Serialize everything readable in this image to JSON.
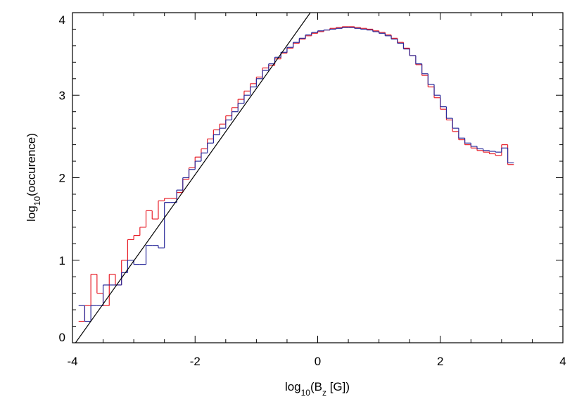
{
  "chart_data": {
    "type": "histogram",
    "xlabel": [
      {
        "text": "log"
      },
      {
        "text": "10",
        "sub": true
      },
      {
        "text": "(B"
      },
      {
        "text": "z",
        "sub": true
      },
      {
        "text": " [G])"
      }
    ],
    "ylabel": [
      {
        "text": "log"
      },
      {
        "text": "10",
        "sub": true
      },
      {
        "text": "(occurence)"
      }
    ],
    "xlim": [
      -4,
      4
    ],
    "ylim": [
      0,
      4
    ],
    "xticks": [
      -4,
      -2,
      0,
      2,
      4
    ],
    "yticks": [
      0,
      1,
      2,
      3,
      4
    ],
    "xminorticks": [
      -3.5,
      -3,
      -2.5,
      -1.5,
      -1,
      -0.5,
      0.5,
      1,
      1.5,
      2.5,
      3,
      3.5
    ],
    "yminorticks": [
      0.2,
      0.4,
      0.6,
      0.8,
      1.2,
      1.4,
      1.6,
      1.8,
      2.2,
      2.4,
      2.6,
      2.8,
      3.2,
      3.4,
      3.6,
      3.8
    ],
    "bins": [
      -3.9,
      -3.8,
      -3.7,
      -3.6,
      -3.5,
      -3.4,
      -3.3,
      -3.2,
      -3.1,
      -3.0,
      -2.9,
      -2.8,
      -2.7,
      -2.6,
      -2.5,
      -2.4,
      -2.3,
      -2.2,
      -2.1,
      -2.0,
      -1.9,
      -1.8,
      -1.7,
      -1.6,
      -1.5,
      -1.4,
      -1.3,
      -1.2,
      -1.1,
      -1.0,
      -0.9,
      -0.8,
      -0.7,
      -0.6,
      -0.5,
      -0.4,
      -0.3,
      -0.2,
      -0.1,
      0.0,
      0.1,
      0.2,
      0.3,
      0.4,
      0.5,
      0.6,
      0.7,
      0.8,
      0.9,
      1.0,
      1.1,
      1.2,
      1.3,
      1.4,
      1.5,
      1.6,
      1.7,
      1.8,
      1.9,
      2.0,
      2.1,
      2.2,
      2.3,
      2.4,
      2.5,
      2.6,
      2.7,
      2.8,
      2.9,
      3.0,
      3.1,
      3.2
    ],
    "series": [
      {
        "color": "#e8202a",
        "values": [
          0.26,
          0.45,
          0.83,
          0.6,
          0.45,
          0.83,
          0.7,
          1.0,
          1.25,
          1.3,
          1.4,
          1.6,
          1.5,
          1.72,
          1.75,
          1.75,
          1.82,
          1.98,
          2.12,
          2.25,
          2.35,
          2.47,
          2.58,
          2.65,
          2.75,
          2.85,
          2.95,
          3.05,
          3.14,
          3.22,
          3.33,
          3.36,
          3.44,
          3.51,
          3.57,
          3.63,
          3.68,
          3.72,
          3.75,
          3.77,
          3.79,
          3.81,
          3.82,
          3.83,
          3.83,
          3.82,
          3.81,
          3.8,
          3.78,
          3.76,
          3.73,
          3.69,
          3.64,
          3.57,
          3.48,
          3.37,
          3.24,
          3.1,
          2.97,
          2.83,
          2.7,
          2.56,
          2.46,
          2.4,
          2.36,
          2.33,
          2.31,
          2.29,
          2.27,
          2.4,
          2.16
        ]
      },
      {
        "color": "#2a2a9a",
        "values": [
          0.45,
          0.26,
          0.45,
          0.45,
          0.7,
          0.7,
          0.7,
          0.85,
          1.0,
          0.95,
          0.95,
          1.18,
          1.18,
          1.15,
          1.7,
          1.7,
          1.85,
          2.0,
          2.1,
          2.2,
          2.3,
          2.42,
          2.52,
          2.6,
          2.7,
          2.8,
          2.9,
          3.0,
          3.1,
          3.2,
          3.3,
          3.38,
          3.46,
          3.52,
          3.58,
          3.64,
          3.69,
          3.73,
          3.76,
          3.78,
          3.79,
          3.8,
          3.81,
          3.82,
          3.82,
          3.81,
          3.8,
          3.79,
          3.77,
          3.75,
          3.72,
          3.68,
          3.63,
          3.56,
          3.48,
          3.38,
          3.26,
          3.13,
          3.0,
          2.86,
          2.72,
          2.6,
          2.48,
          2.42,
          2.38,
          2.35,
          2.33,
          2.32,
          2.31,
          2.36,
          2.18
        ]
      }
    ],
    "lines": [
      {
        "color": "#000000",
        "x": [
          -3.95,
          -0.12
        ],
        "values": [
          0,
          4
        ]
      }
    ]
  }
}
